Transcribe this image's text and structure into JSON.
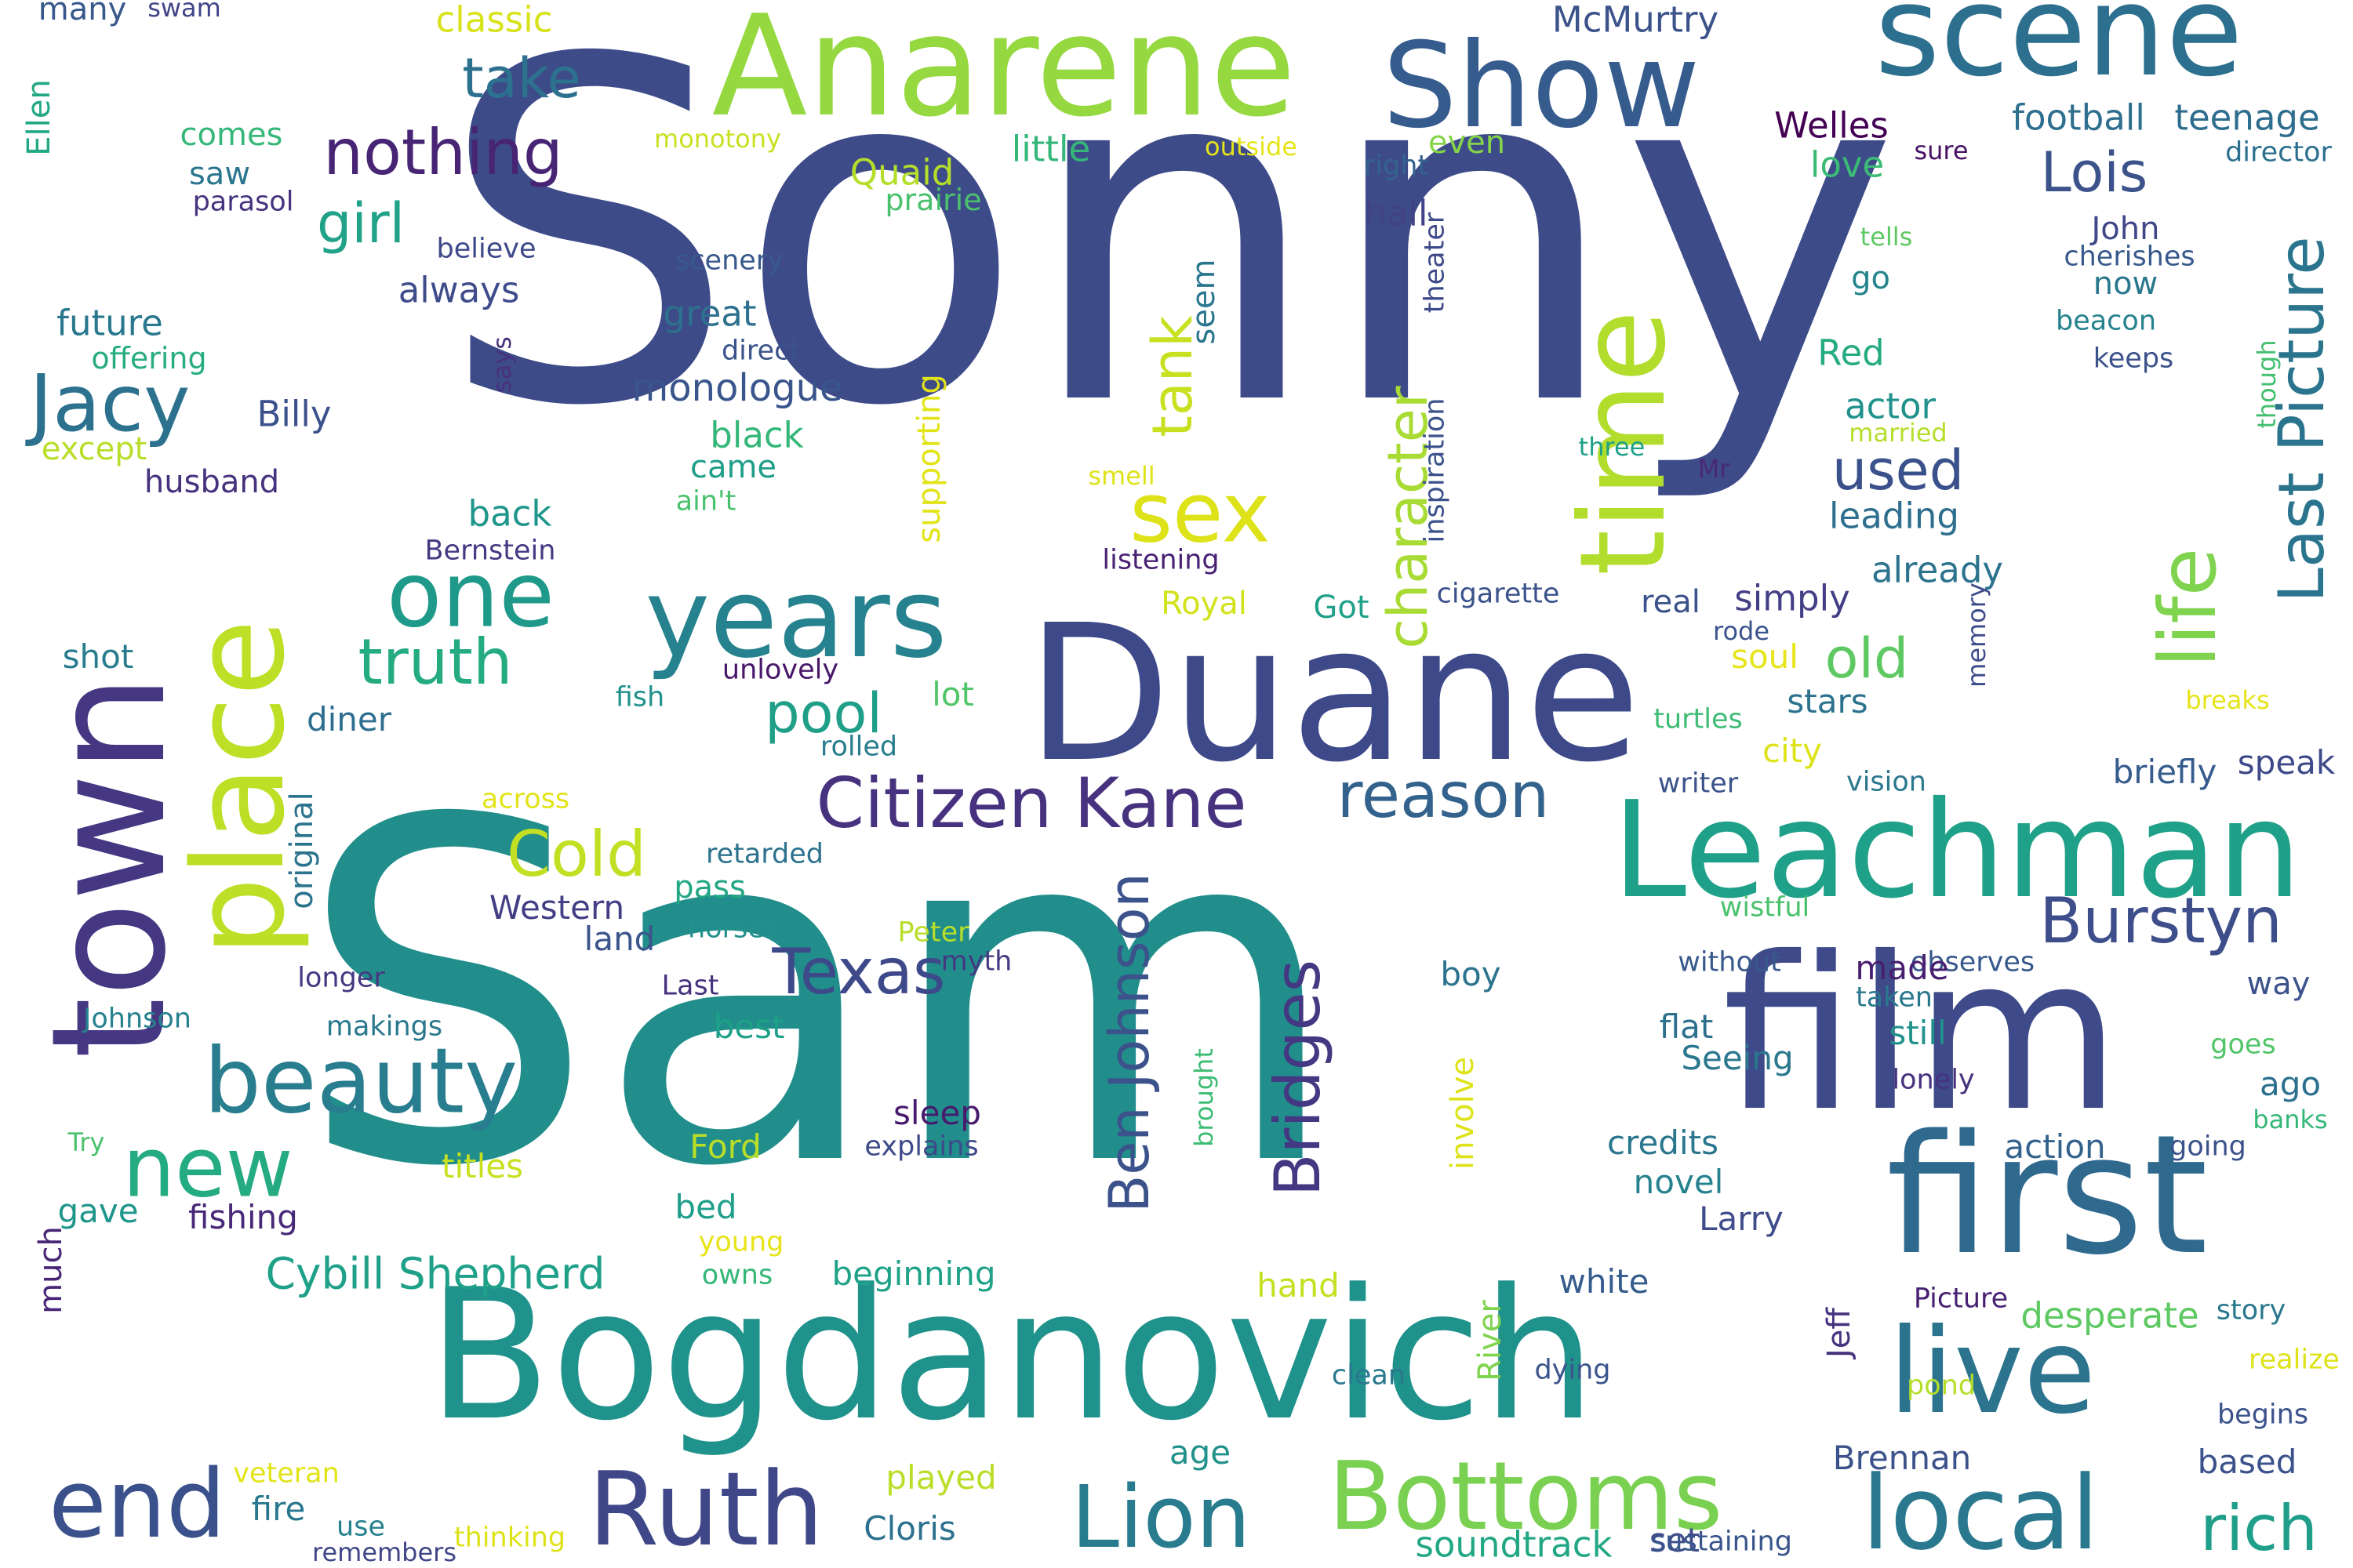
{
  "cloud": {
    "words": [
      {
        "text": "Sonny",
        "color": "#3e4b89"
      },
      {
        "text": "Sam",
        "color": "#218e8c"
      },
      {
        "text": "Bogdanovich",
        "color": "#20928c"
      },
      {
        "text": "Duane",
        "color": "#3e4989"
      },
      {
        "text": "Anarene",
        "color": "#95d840"
      },
      {
        "text": "scene",
        "color": "#2d6f8e"
      },
      {
        "text": "Show",
        "color": "#365c8d"
      },
      {
        "text": "film",
        "color": "#3e4a89"
      },
      {
        "text": "first",
        "color": "#30698e"
      },
      {
        "text": "Leachman",
        "color": "#1fa088"
      },
      {
        "text": "town",
        "color": "#453781"
      },
      {
        "text": "place",
        "color": "#bddf26"
      },
      {
        "text": "time",
        "color": "#b2dd2d"
      },
      {
        "text": "years",
        "color": "#26828e"
      },
      {
        "text": "live",
        "color": "#2c738e"
      },
      {
        "text": "beauty",
        "color": "#287d8e"
      },
      {
        "text": "local",
        "color": "#2a788e"
      },
      {
        "text": "Bottoms",
        "color": "#7ad151"
      },
      {
        "text": "Ruth",
        "color": "#3f4788"
      },
      {
        "text": "end",
        "color": "#3b518b"
      },
      {
        "text": "Lion",
        "color": "#287c8e"
      },
      {
        "text": "one",
        "color": "#1f998a"
      },
      {
        "text": "new",
        "color": "#25ab82"
      },
      {
        "text": "Citizen Kane",
        "color": "#46327e"
      },
      {
        "text": "Jacy",
        "color": "#2c728e"
      },
      {
        "text": "reason",
        "color": "#33638d"
      },
      {
        "text": "sex",
        "color": "#dde318"
      },
      {
        "text": "nothing",
        "color": "#482475"
      },
      {
        "text": "life",
        "color": "#7fd34e"
      },
      {
        "text": "Last Picture",
        "color": "#2b748e"
      },
      {
        "text": "truth",
        "color": "#25ab82"
      },
      {
        "text": "Burstyn",
        "color": "#3d4e8a"
      },
      {
        "text": "Texas",
        "color": "#3e4989"
      },
      {
        "text": "Bridges",
        "color": "#453882"
      },
      {
        "text": "Ben Johnson",
        "color": "#3b528b"
      },
      {
        "text": "Cold",
        "color": "#c2df23"
      },
      {
        "text": "character",
        "color": "#a8db34"
      },
      {
        "text": "tank",
        "color": "#c8e020"
      },
      {
        "text": "pool",
        "color": "#1f9f88"
      },
      {
        "text": "used",
        "color": "#3b518b"
      },
      {
        "text": "Lois",
        "color": "#3b528b"
      },
      {
        "text": "girl",
        "color": "#1fa287"
      },
      {
        "text": "take",
        "color": "#2c728e"
      },
      {
        "text": "old",
        "color": "#5ec962"
      },
      {
        "text": "rich",
        "color": "#1f9e89"
      },
      {
        "text": "Cybill Shepherd",
        "color": "#1fa088"
      },
      {
        "text": "soundtrack",
        "color": "#22a785"
      },
      {
        "text": "monologue",
        "color": "#39558c"
      },
      {
        "text": "football",
        "color": "#2e6e8e"
      },
      {
        "text": "teenage",
        "color": "#2e6d8e"
      },
      {
        "text": "McMurtry",
        "color": "#3b528b"
      },
      {
        "text": "Welles",
        "color": "#440154"
      },
      {
        "text": "love",
        "color": "#3bbb75"
      },
      {
        "text": "little",
        "color": "#35b779"
      },
      {
        "text": "Quaid",
        "color": "#b5de2b"
      },
      {
        "text": "prairie",
        "color": "#4ac16d"
      },
      {
        "text": "classic",
        "color": "#d8e219"
      },
      {
        "text": "many",
        "color": "#38588c"
      },
      {
        "text": "swam",
        "color": "#414487"
      },
      {
        "text": "Ellen",
        "color": "#22a884"
      },
      {
        "text": "comes",
        "color": "#35b779"
      },
      {
        "text": "saw",
        "color": "#2a768e"
      },
      {
        "text": "parasol",
        "color": "#46337f"
      },
      {
        "text": "monotony",
        "color": "#c8e020"
      },
      {
        "text": "outside",
        "color": "#e5e419"
      },
      {
        "text": "right",
        "color": "#33638d"
      },
      {
        "text": "even",
        "color": "#86d549"
      },
      {
        "text": "sure",
        "color": "#471164"
      },
      {
        "text": "director",
        "color": "#2d708e"
      },
      {
        "text": "hall",
        "color": "#414287"
      },
      {
        "text": "theater",
        "color": "#3e4a89"
      },
      {
        "text": "inspiration",
        "color": "#3b528b"
      },
      {
        "text": "believe",
        "color": "#3f4889"
      },
      {
        "text": "scenery",
        "color": "#38598c"
      },
      {
        "text": "future",
        "color": "#2a788e"
      },
      {
        "text": "offering",
        "color": "#27ad81"
      },
      {
        "text": "always",
        "color": "#3e4c8a"
      },
      {
        "text": "great",
        "color": "#2d718e"
      },
      {
        "text": "direct",
        "color": "#3a538b"
      },
      {
        "text": "seem",
        "color": "#2a768e"
      },
      {
        "text": "John",
        "color": "#3f4788"
      },
      {
        "text": "cherishes",
        "color": "#38598c"
      },
      {
        "text": "now",
        "color": "#2a788e"
      },
      {
        "text": "tells",
        "color": "#5ec962"
      },
      {
        "text": "go",
        "color": "#25848e"
      },
      {
        "text": "beacon",
        "color": "#26828e"
      },
      {
        "text": "keeps",
        "color": "#3b528b"
      },
      {
        "text": "though",
        "color": "#44bf70"
      },
      {
        "text": "says",
        "color": "#46327e"
      },
      {
        "text": "Billy",
        "color": "#3b518b"
      },
      {
        "text": "Red",
        "color": "#25ab82"
      },
      {
        "text": "black",
        "color": "#35b779"
      },
      {
        "text": "actor",
        "color": "#21918c"
      },
      {
        "text": "married",
        "color": "#b5de2b"
      },
      {
        "text": "three",
        "color": "#1fa088"
      },
      {
        "text": "Mr",
        "color": "#482878"
      },
      {
        "text": "except",
        "color": "#b8de29"
      },
      {
        "text": "husband",
        "color": "#46327e"
      },
      {
        "text": "came",
        "color": "#1f9e89"
      },
      {
        "text": "ain't",
        "color": "#4ac16d"
      },
      {
        "text": "smell",
        "color": "#dde318"
      },
      {
        "text": "back",
        "color": "#1f968b"
      },
      {
        "text": "supporting",
        "color": "#e2e418"
      },
      {
        "text": "leading",
        "color": "#2e6e8e"
      },
      {
        "text": "Bernstein",
        "color": "#443983"
      },
      {
        "text": "listening",
        "color": "#482173"
      },
      {
        "text": "already",
        "color": "#2c738e"
      },
      {
        "text": "cigarette",
        "color": "#3b528b"
      },
      {
        "text": "real",
        "color": "#3b528b"
      },
      {
        "text": "simply",
        "color": "#433e85"
      },
      {
        "text": "Royal",
        "color": "#d2e21b"
      },
      {
        "text": "Got",
        "color": "#1fa088"
      },
      {
        "text": "rode",
        "color": "#3a548c"
      },
      {
        "text": "memory",
        "color": "#3e4c8a"
      },
      {
        "text": "shot",
        "color": "#287c8e"
      },
      {
        "text": "unlovely",
        "color": "#481769"
      },
      {
        "text": "soul",
        "color": "#e7e419"
      },
      {
        "text": "lot",
        "color": "#52c569"
      },
      {
        "text": "stars",
        "color": "#2c728e"
      },
      {
        "text": "fish",
        "color": "#21918c"
      },
      {
        "text": "diner",
        "color": "#2e6e8e"
      },
      {
        "text": "turtles",
        "color": "#3dbc74"
      },
      {
        "text": "breaks",
        "color": "#e5e419"
      },
      {
        "text": "rolled",
        "color": "#287d8e"
      },
      {
        "text": "city",
        "color": "#dde318"
      },
      {
        "text": "briefly",
        "color": "#365c8d"
      },
      {
        "text": "speak",
        "color": "#3e4a89"
      },
      {
        "text": "writer",
        "color": "#3b528b"
      },
      {
        "text": "vision",
        "color": "#2a778e"
      },
      {
        "text": "across",
        "color": "#e2e418"
      },
      {
        "text": "original",
        "color": "#2c738e"
      },
      {
        "text": "retarded",
        "color": "#2c728e"
      },
      {
        "text": "pass",
        "color": "#22a785"
      },
      {
        "text": "Western",
        "color": "#433e85"
      },
      {
        "text": "wistful",
        "color": "#4ac16d"
      },
      {
        "text": "land",
        "color": "#3a548c"
      },
      {
        "text": "horses",
        "color": "#21918c"
      },
      {
        "text": "Peter",
        "color": "#b8de29"
      },
      {
        "text": "myth",
        "color": "#443983"
      },
      {
        "text": "without",
        "color": "#38598c"
      },
      {
        "text": "observes",
        "color": "#38598c"
      },
      {
        "text": "made",
        "color": "#481f70"
      },
      {
        "text": "taken",
        "color": "#2a788e"
      },
      {
        "text": "way",
        "color": "#3b528b"
      },
      {
        "text": "longer",
        "color": "#453882"
      },
      {
        "text": "Last",
        "color": "#46337f"
      },
      {
        "text": "boy",
        "color": "#2c738e"
      },
      {
        "text": "Johnson",
        "color": "#26828e"
      },
      {
        "text": "makings",
        "color": "#2a788e"
      },
      {
        "text": "best",
        "color": "#1fa088"
      },
      {
        "text": "flat",
        "color": "#2d708e"
      },
      {
        "text": "still",
        "color": "#21918c"
      },
      {
        "text": "goes",
        "color": "#52c569"
      },
      {
        "text": "Seeing",
        "color": "#2a778e"
      },
      {
        "text": "lonely",
        "color": "#46327e"
      },
      {
        "text": "ago",
        "color": "#2d708e"
      },
      {
        "text": "involve",
        "color": "#dde318"
      },
      {
        "text": "brought",
        "color": "#3dbc74"
      },
      {
        "text": "sleep",
        "color": "#481a6c"
      },
      {
        "text": "banks",
        "color": "#35b779"
      },
      {
        "text": "Try",
        "color": "#4ac16d"
      },
      {
        "text": "explains",
        "color": "#3e4989"
      },
      {
        "text": "Ford",
        "color": "#bade28"
      },
      {
        "text": "credits",
        "color": "#2a768e"
      },
      {
        "text": "action",
        "color": "#33638d"
      },
      {
        "text": "going",
        "color": "#3b528b"
      },
      {
        "text": "titles",
        "color": "#c8e020"
      },
      {
        "text": "novel",
        "color": "#26828e"
      },
      {
        "text": "gave",
        "color": "#1f968b"
      },
      {
        "text": "fishing",
        "color": "#482878"
      },
      {
        "text": "bed",
        "color": "#1f9e89"
      },
      {
        "text": "Larry",
        "color": "#3e4c8a"
      },
      {
        "text": "young",
        "color": "#e8e419"
      },
      {
        "text": "much",
        "color": "#482576"
      },
      {
        "text": "owns",
        "color": "#35b779"
      },
      {
        "text": "beginning",
        "color": "#1fa287"
      },
      {
        "text": "hand",
        "color": "#c5e021"
      },
      {
        "text": "white",
        "color": "#365c8d"
      },
      {
        "text": "River",
        "color": "#7fd34e"
      },
      {
        "text": "Jeff",
        "color": "#46337f"
      },
      {
        "text": "Picture",
        "color": "#482173"
      },
      {
        "text": "desperate",
        "color": "#5ec962"
      },
      {
        "text": "story",
        "color": "#2a788e"
      },
      {
        "text": "realize",
        "color": "#dde318"
      },
      {
        "text": "pond",
        "color": "#b5de2b"
      },
      {
        "text": "dying",
        "color": "#3a548c"
      },
      {
        "text": "clean",
        "color": "#2a788e"
      },
      {
        "text": "begins",
        "color": "#3b528b"
      },
      {
        "text": "Brennan",
        "color": "#3b528b"
      },
      {
        "text": "based",
        "color": "#3b528b"
      },
      {
        "text": "age",
        "color": "#21918c"
      },
      {
        "text": "veteran",
        "color": "#e2e418"
      },
      {
        "text": "fire",
        "color": "#2a788e"
      },
      {
        "text": "played",
        "color": "#bade28"
      },
      {
        "text": "use",
        "color": "#26828e"
      },
      {
        "text": "Cloris",
        "color": "#2c728e"
      },
      {
        "text": "set",
        "color": "#3e4c8a"
      },
      {
        "text": "remembers",
        "color": "#404688"
      },
      {
        "text": "thinking",
        "color": "#dde318"
      },
      {
        "text": "sustaining",
        "color": "#39558c"
      }
    ]
  }
}
